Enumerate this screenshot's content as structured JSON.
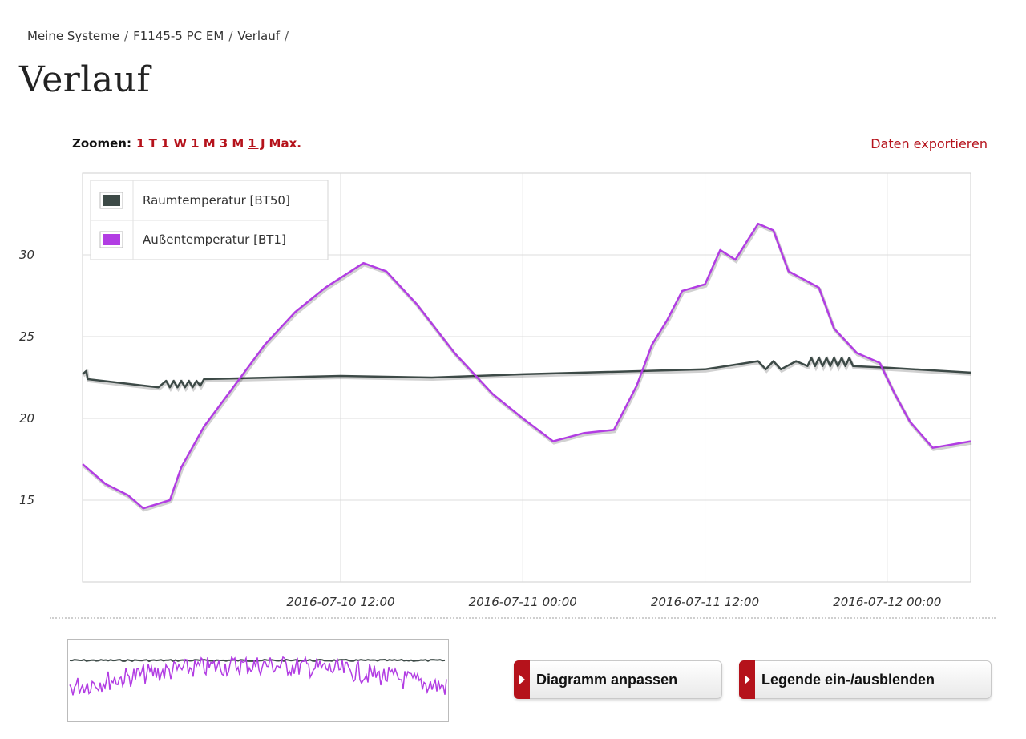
{
  "breadcrumb": {
    "items": [
      "Meine Systeme",
      "F1145-5 PC EM",
      "Verlauf"
    ],
    "separator": "/"
  },
  "page_title": "Verlauf",
  "zoom": {
    "label": "Zoomen:",
    "options": [
      "1 T",
      "1 W",
      "1 M",
      "3 M",
      "1 J",
      "Max."
    ],
    "active": "1 J"
  },
  "export_label": "Daten exportieren",
  "buttons": {
    "adjust": "Diagramm anpassen",
    "legend": "Legende ein-/ausblenden"
  },
  "colors": {
    "accent": "#b5121b",
    "series_room": "#3d4a47",
    "series_outdoor": "#b23de3"
  },
  "chart_data": {
    "type": "line",
    "title": "",
    "xlabel": "",
    "ylabel": "",
    "x_range": [
      "2016-07-09 19:00",
      "2016-07-12 05:30"
    ],
    "ylim": [
      10,
      35
    ],
    "yticks": [
      15,
      20,
      25,
      30
    ],
    "xticks": [
      "2016-07-10 12:00",
      "2016-07-11 00:00",
      "2016-07-11 12:00",
      "2016-07-12 00:00"
    ],
    "grid": true,
    "legend_position": "top-left",
    "series": [
      {
        "name": "Raumtemperatur [BT50]",
        "color": "#3d4a47",
        "points": [
          [
            "2016-07-09 19:00",
            22.7
          ],
          [
            "2016-07-09 19:15",
            22.9
          ],
          [
            "2016-07-09 19:20",
            22.4
          ],
          [
            "2016-07-10 00:00",
            21.9
          ],
          [
            "2016-07-10 00:30",
            22.3
          ],
          [
            "2016-07-10 00:45",
            21.9
          ],
          [
            "2016-07-10 01:00",
            22.3
          ],
          [
            "2016-07-10 01:15",
            21.9
          ],
          [
            "2016-07-10 01:30",
            22.3
          ],
          [
            "2016-07-10 01:45",
            21.9
          ],
          [
            "2016-07-10 02:00",
            22.3
          ],
          [
            "2016-07-10 02:15",
            21.9
          ],
          [
            "2016-07-10 02:30",
            22.3
          ],
          [
            "2016-07-10 02:45",
            22.0
          ],
          [
            "2016-07-10 03:00",
            22.4
          ],
          [
            "2016-07-10 12:00",
            22.6
          ],
          [
            "2016-07-10 18:00",
            22.5
          ],
          [
            "2016-07-11 00:00",
            22.7
          ],
          [
            "2016-07-11 12:00",
            23.0
          ],
          [
            "2016-07-11 15:30",
            23.5
          ],
          [
            "2016-07-11 16:00",
            23.0
          ],
          [
            "2016-07-11 16:30",
            23.5
          ],
          [
            "2016-07-11 17:00",
            23.0
          ],
          [
            "2016-07-11 18:00",
            23.5
          ],
          [
            "2016-07-11 18:45",
            23.2
          ],
          [
            "2016-07-11 19:00",
            23.7
          ],
          [
            "2016-07-11 19:15",
            23.2
          ],
          [
            "2016-07-11 19:30",
            23.7
          ],
          [
            "2016-07-11 19:45",
            23.2
          ],
          [
            "2016-07-11 20:00",
            23.7
          ],
          [
            "2016-07-11 20:15",
            23.2
          ],
          [
            "2016-07-11 20:30",
            23.7
          ],
          [
            "2016-07-11 20:45",
            23.2
          ],
          [
            "2016-07-11 21:00",
            23.7
          ],
          [
            "2016-07-11 21:15",
            23.2
          ],
          [
            "2016-07-11 21:30",
            23.7
          ],
          [
            "2016-07-11 21:45",
            23.2
          ],
          [
            "2016-07-12 00:00",
            23.1
          ],
          [
            "2016-07-12 05:30",
            22.8
          ]
        ]
      },
      {
        "name": "Außentemperatur [BT1]",
        "color": "#b23de3",
        "points": [
          [
            "2016-07-09 19:00",
            17.2
          ],
          [
            "2016-07-09 20:30",
            16.0
          ],
          [
            "2016-07-09 22:00",
            15.3
          ],
          [
            "2016-07-09 23:00",
            14.5
          ],
          [
            "2016-07-10 00:45",
            15.0
          ],
          [
            "2016-07-10 01:30",
            17.0
          ],
          [
            "2016-07-10 03:00",
            19.5
          ],
          [
            "2016-07-10 05:00",
            22.0
          ],
          [
            "2016-07-10 07:00",
            24.5
          ],
          [
            "2016-07-10 09:00",
            26.5
          ],
          [
            "2016-07-10 11:00",
            28.0
          ],
          [
            "2016-07-10 13:30",
            29.5
          ],
          [
            "2016-07-10 15:00",
            29.0
          ],
          [
            "2016-07-10 17:00",
            27.0
          ],
          [
            "2016-07-10 19:30",
            24.0
          ],
          [
            "2016-07-10 22:00",
            21.5
          ],
          [
            "2016-07-11 00:00",
            20.0
          ],
          [
            "2016-07-11 02:00",
            18.6
          ],
          [
            "2016-07-11 04:00",
            19.1
          ],
          [
            "2016-07-11 06:00",
            19.3
          ],
          [
            "2016-07-11 07:30",
            22.0
          ],
          [
            "2016-07-11 08:30",
            24.5
          ],
          [
            "2016-07-11 09:30",
            26.0
          ],
          [
            "2016-07-11 10:30",
            27.8
          ],
          [
            "2016-07-11 12:00",
            28.2
          ],
          [
            "2016-07-11 13:00",
            30.3
          ],
          [
            "2016-07-11 14:00",
            29.7
          ],
          [
            "2016-07-11 15:30",
            31.9
          ],
          [
            "2016-07-11 16:30",
            31.5
          ],
          [
            "2016-07-11 17:30",
            29.0
          ],
          [
            "2016-07-11 19:30",
            28.0
          ],
          [
            "2016-07-11 20:30",
            25.5
          ],
          [
            "2016-07-11 22:00",
            24.0
          ],
          [
            "2016-07-11 23:30",
            23.4
          ],
          [
            "2016-07-12 00:30",
            21.5
          ],
          [
            "2016-07-12 01:30",
            19.8
          ],
          [
            "2016-07-12 03:00",
            18.2
          ],
          [
            "2016-07-12 05:30",
            18.6
          ]
        ]
      }
    ]
  }
}
